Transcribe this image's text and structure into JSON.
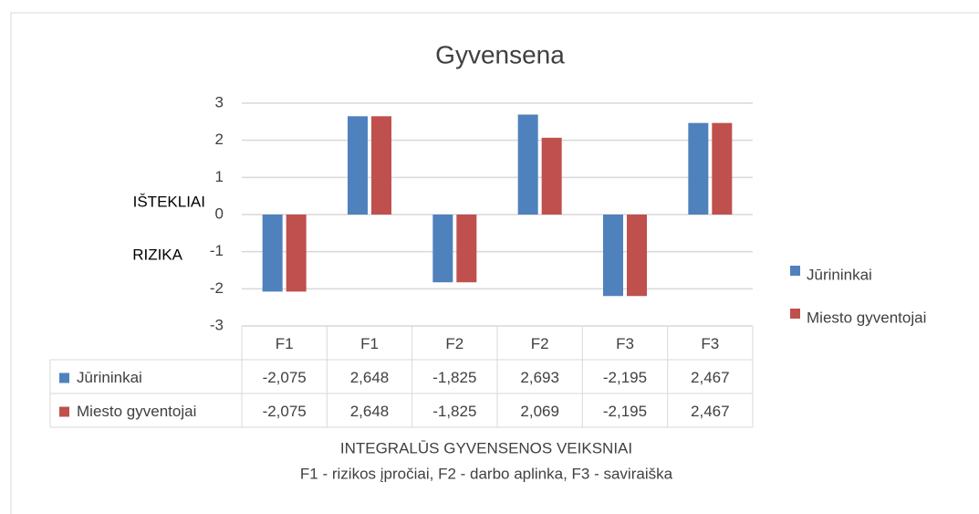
{
  "chart_data": {
    "type": "bar",
    "title": "Gyvensena",
    "categories": [
      "F1",
      "F1",
      "F2",
      "F2",
      "F3",
      "F3"
    ],
    "series": [
      {
        "name": "Jūrininkai",
        "color": "#4f81bd",
        "values": [
          -2.075,
          2.648,
          -1.825,
          2.693,
          -2.195,
          2.467
        ],
        "value_labels": [
          "-2,075",
          "2,648",
          "-1,825",
          "2,693",
          "-2,195",
          "2,467"
        ]
      },
      {
        "name": "Miesto gyventojai",
        "color": "#c0504d",
        "values": [
          -2.075,
          2.648,
          -1.825,
          2.069,
          -2.195,
          2.467
        ],
        "value_labels": [
          "-2,075",
          "2,648",
          "-1,825",
          "2,069",
          "-2,195",
          "2,467"
        ]
      }
    ],
    "ylim": [
      -3,
      3
    ],
    "yticks": [
      -3,
      -2,
      -1,
      0,
      1,
      2,
      3
    ],
    "grid": true,
    "annotations": [
      "IŠTEKLIAI",
      "RIZIKA"
    ],
    "x_axis_label": "INTEGRALŪS GYVENSENOS VEIKSNIAI",
    "x_axis_note": "F1 - rizikos įpročiai, F2 - darbo aplinka, F3 - saviraiška",
    "legend": "right"
  }
}
